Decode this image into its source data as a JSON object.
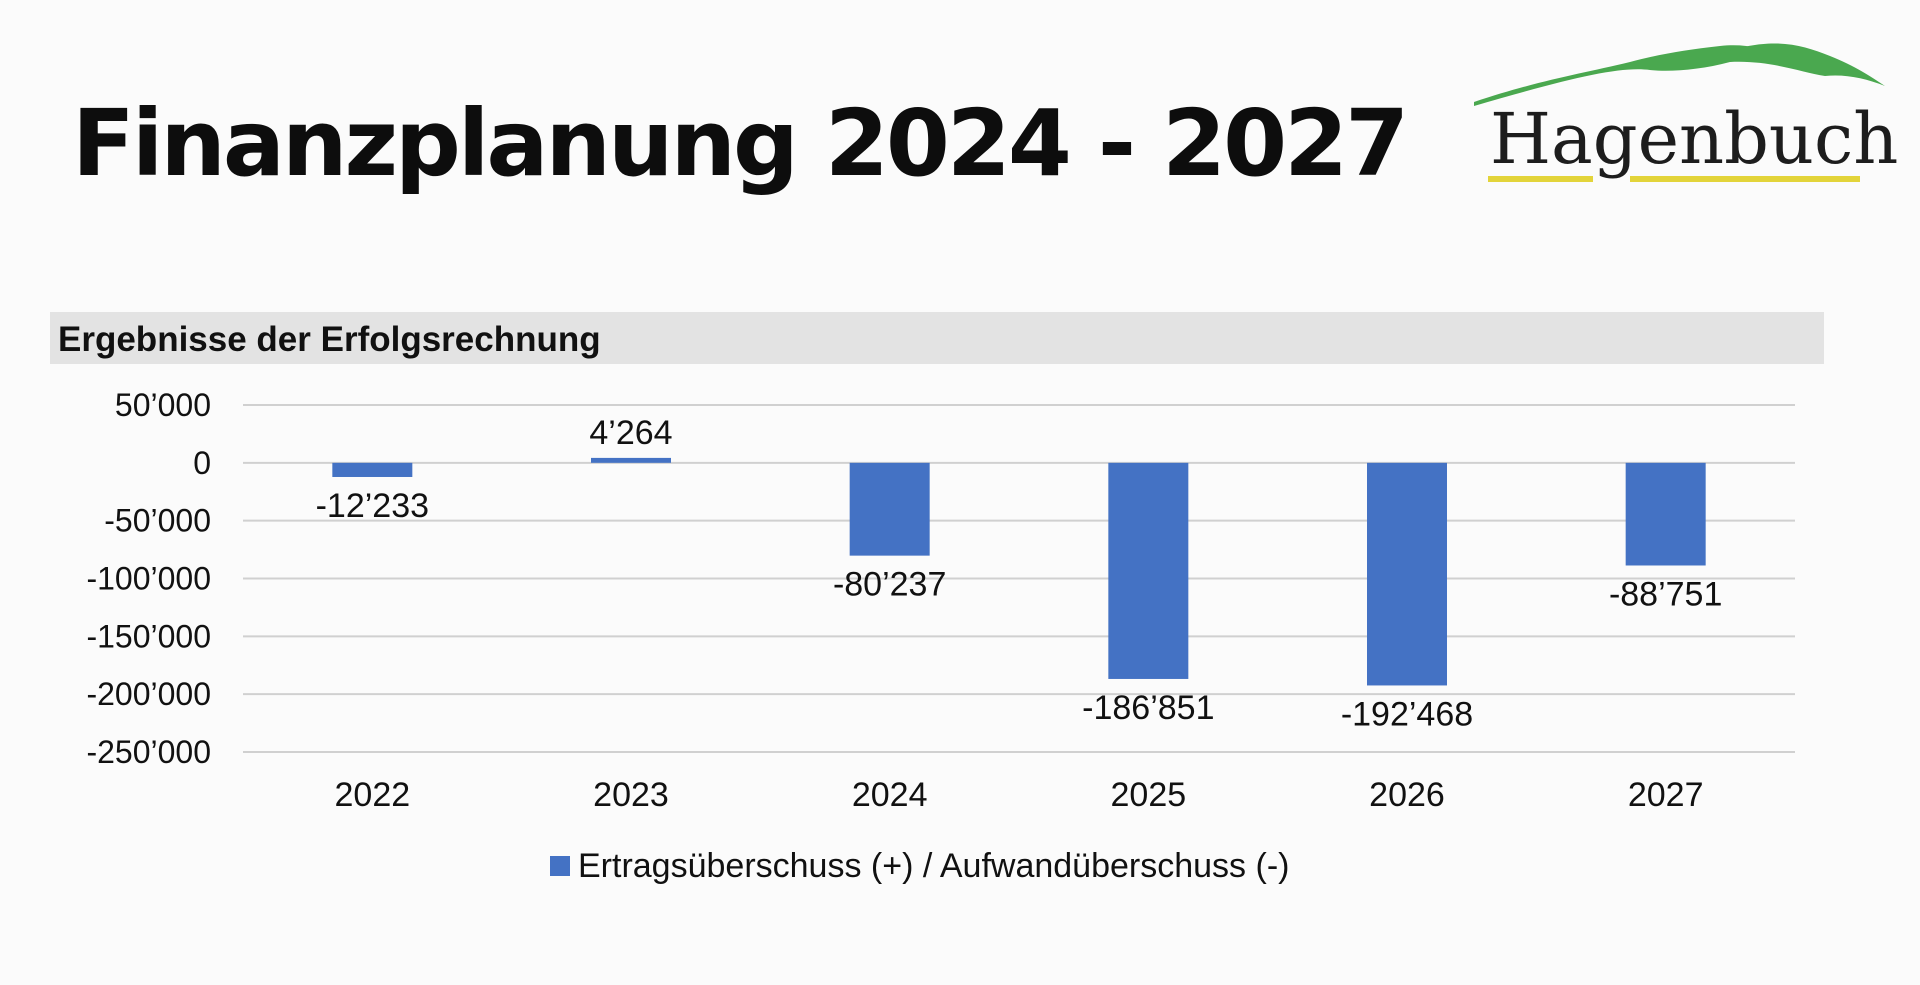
{
  "page": {
    "title": "Finanzplanung 2024 - 2027",
    "logo_text": "Hagenbuch"
  },
  "section": {
    "title": "Ergebnisse der Erfolgsrechnung"
  },
  "colors": {
    "bar": "#4472c4",
    "grid": "#d0d0d0",
    "section_bg": "#e3e3e3",
    "logo_green": "#4aa84f",
    "logo_yellow": "#e3d43a"
  },
  "chart_data": {
    "type": "bar",
    "title": "Ergebnisse der Erfolgsrechnung",
    "categories": [
      "2022",
      "2023",
      "2024",
      "2025",
      "2026",
      "2027"
    ],
    "series": [
      {
        "name": "Ertragsüberschuss (+) / Aufwandüberschuss (-)",
        "values": [
          -12233,
          4264,
          -80237,
          -186851,
          -192468,
          -88751
        ]
      }
    ],
    "data_labels": [
      "-12’233",
      "4’264",
      "-80’237",
      "-186’851",
      "-192’468",
      "-88’751"
    ],
    "y_ticks": [
      50000,
      0,
      -50000,
      -100000,
      -150000,
      -200000,
      -250000
    ],
    "y_tick_labels": [
      "50’000",
      "0",
      "-50’000",
      "-100’000",
      "-150’000",
      "-200’000",
      "-250’000"
    ],
    "ylim": [
      -250000,
      50000
    ],
    "xlabel": "",
    "ylabel": "",
    "grid": true,
    "legend_position": "bottom"
  },
  "legend": {
    "label": "Ertragsüberschuss (+) / Aufwandüberschuss (-)"
  }
}
